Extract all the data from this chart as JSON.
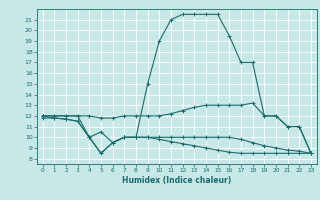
{
  "bg_color": "#c8e8e8",
  "grid_color": "#ffffff",
  "line_color": "#1a6b6b",
  "xlabel": "Humidex (Indice chaleur)",
  "xlim": [
    -0.5,
    23.5
  ],
  "ylim": [
    7.5,
    22
  ],
  "yticks": [
    8,
    9,
    10,
    11,
    12,
    13,
    14,
    15,
    16,
    17,
    18,
    19,
    20,
    21
  ],
  "xticks": [
    0,
    1,
    2,
    3,
    4,
    5,
    6,
    7,
    8,
    9,
    10,
    11,
    12,
    13,
    14,
    15,
    16,
    17,
    18,
    19,
    20,
    21,
    22,
    23
  ],
  "line1_x": [
    0,
    1,
    2,
    3,
    4,
    5,
    6,
    7,
    8,
    9,
    10,
    11,
    12,
    13,
    14,
    15,
    16,
    17,
    18,
    19,
    20,
    21,
    22,
    23
  ],
  "line1_y": [
    12,
    12,
    12,
    12,
    10,
    10.5,
    9.5,
    10,
    10,
    15,
    19,
    21,
    21.5,
    21.5,
    21.5,
    21.5,
    19.5,
    17,
    17,
    12,
    12,
    11,
    11,
    8.5
  ],
  "line2_x": [
    0,
    1,
    2,
    3,
    4,
    5,
    6,
    7,
    8,
    9,
    10,
    11,
    12,
    13,
    14,
    15,
    16,
    17,
    18,
    19,
    20,
    21,
    22,
    23
  ],
  "line2_y": [
    12,
    12,
    12,
    12,
    12,
    11.8,
    11.8,
    12,
    12,
    12,
    12,
    12.2,
    12.5,
    12.8,
    13,
    13,
    13,
    13,
    13.2,
    12,
    12,
    11,
    11,
    8.5
  ],
  "line3_x": [
    0,
    1,
    2,
    3,
    4,
    5,
    6,
    7,
    8,
    9,
    10,
    11,
    12,
    13,
    14,
    15,
    16,
    17,
    18,
    19,
    20,
    21,
    22,
    23
  ],
  "line3_y": [
    12,
    11.8,
    11.7,
    11.5,
    10,
    8.5,
    9.5,
    10,
    10,
    10,
    10,
    10,
    10,
    10,
    10,
    10,
    10,
    9.8,
    9.5,
    9.2,
    9.0,
    8.8,
    8.7,
    8.5
  ],
  "line4_x": [
    0,
    1,
    2,
    3,
    4,
    5,
    6,
    7,
    8,
    9,
    10,
    11,
    12,
    13,
    14,
    15,
    16,
    17,
    18,
    19,
    20,
    21,
    22,
    23
  ],
  "line4_y": [
    11.8,
    11.8,
    11.7,
    11.5,
    10,
    8.5,
    9.5,
    10,
    10,
    10,
    9.8,
    9.6,
    9.4,
    9.2,
    9.0,
    8.8,
    8.6,
    8.5,
    8.5,
    8.5,
    8.5,
    8.5,
    8.5,
    8.5
  ]
}
